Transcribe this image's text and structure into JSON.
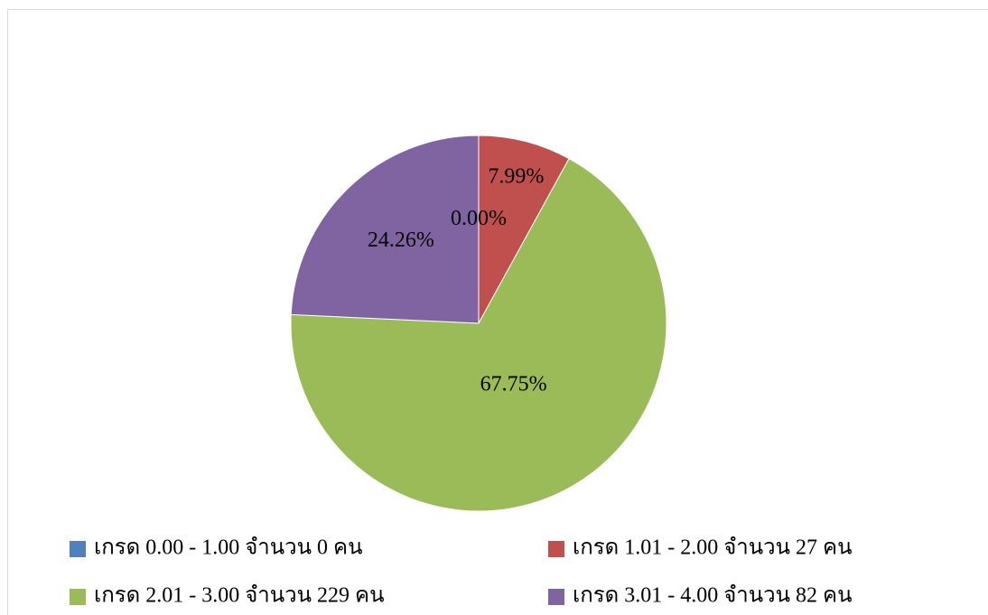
{
  "chart_data": {
    "type": "pie",
    "categories": [
      "เกรด 0.00 - 1.00 จำนวน 0 คน",
      "เกรด 1.01 - 2.00 จำนวน 27 คน",
      "เกรด 2.01 - 3.00 จำนวน 229 คน",
      "เกรด 3.01 - 4.00 จำนวน 82 คน"
    ],
    "values": [
      0,
      7.99,
      67.75,
      24.26
    ],
    "value_labels": [
      "0.00%",
      "7.99%",
      "67.75%",
      "24.26%"
    ],
    "colors": [
      "#4f81bd",
      "#c0504d",
      "#9bbb59",
      "#8064a2"
    ],
    "legend": "bottom"
  }
}
